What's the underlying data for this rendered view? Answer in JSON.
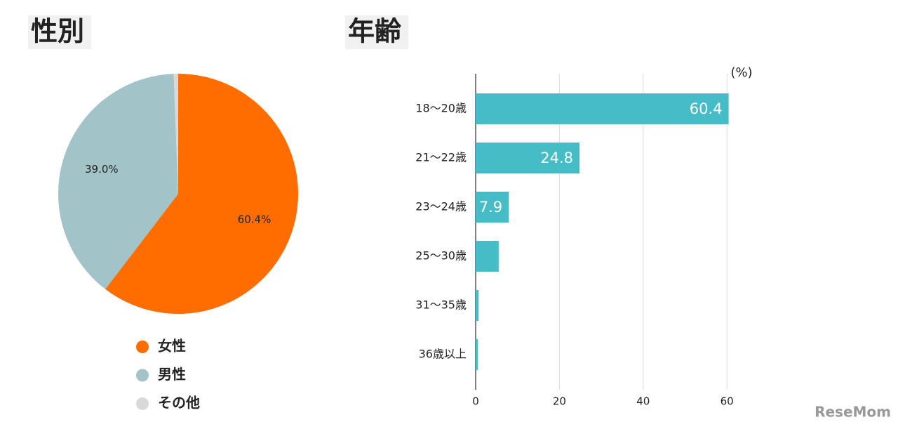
{
  "chart_data": [
    {
      "type": "pie",
      "title": "性別",
      "categories": [
        "女性",
        "男性",
        "その他"
      ],
      "values": [
        60.4,
        39.0,
        0.6
      ],
      "value_labels": [
        "60.4%",
        "39.0%",
        null
      ],
      "colors": [
        "#ff6d01",
        "#a2c4c9",
        "#d9d9d9"
      ]
    },
    {
      "type": "bar",
      "orientation": "horizontal",
      "title": "年齢",
      "categories": [
        "18〜20歳",
        "21〜22歳",
        "23〜24歳",
        "25〜30歳",
        "31〜35歳",
        "36歳以上"
      ],
      "values": [
        60.4,
        24.8,
        7.9,
        5.5,
        0.7,
        0.5
      ],
      "value_labels": [
        "60.4",
        "24.8",
        "7.9",
        null,
        null,
        null
      ],
      "color": "#46bdc6",
      "xlim": [
        0,
        66
      ],
      "xticks": [
        0,
        20,
        40,
        60
      ],
      "grid": true,
      "unit_label": "(%)"
    }
  ],
  "watermark": "ReseMom"
}
